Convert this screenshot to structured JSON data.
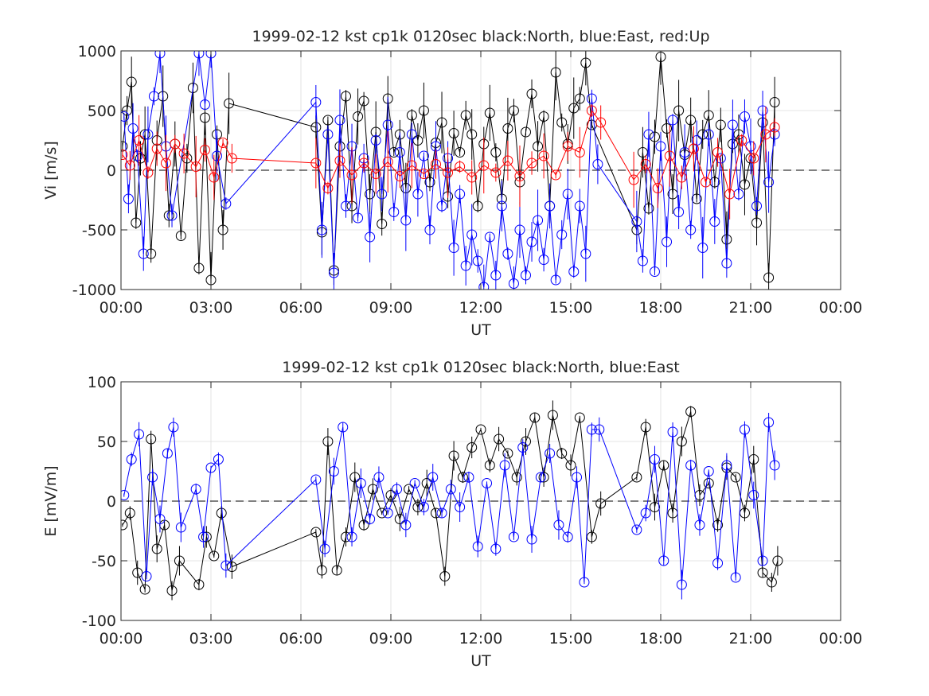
{
  "chart_data": [
    {
      "type": "line",
      "title": "1999-02-12 kst cp1k 0120sec black:North, blue:East, red:Up",
      "xlabel": "UT",
      "ylabel": "Vi [m/s]",
      "xlim": [
        0,
        24
      ],
      "ylim": [
        -1000,
        1000
      ],
      "yticks": [
        -1000,
        -500,
        0,
        500,
        1000
      ],
      "xtick_labels": [
        "00:00",
        "03:00",
        "06:00",
        "09:00",
        "12:00",
        "15:00",
        "18:00",
        "21:00",
        "00:00"
      ],
      "grid": true,
      "zero_line": "dashed",
      "series": [
        {
          "name": "North",
          "color": "#000000",
          "x": [
            0.05,
            0.2,
            0.35,
            0.5,
            0.65,
            0.8,
            1.0,
            1.2,
            1.4,
            1.6,
            1.8,
            2.0,
            2.2,
            2.4,
            2.6,
            2.8,
            3.0,
            3.2,
            3.4,
            3.6,
            6.5,
            6.7,
            6.9,
            7.1,
            7.3,
            7.5,
            7.7,
            7.9,
            8.1,
            8.3,
            8.5,
            8.7,
            8.9,
            9.1,
            9.3,
            9.5,
            9.7,
            9.9,
            10.1,
            10.3,
            10.5,
            10.7,
            10.9,
            11.1,
            11.3,
            11.5,
            11.7,
            11.9,
            12.1,
            12.3,
            12.5,
            12.7,
            12.9,
            13.1,
            13.3,
            13.5,
            13.7,
            13.9,
            14.1,
            14.3,
            14.5,
            14.7,
            14.9,
            15.1,
            15.3,
            15.5,
            15.7,
            17.2,
            17.4,
            17.6,
            17.8,
            18.0,
            18.2,
            18.4,
            18.6,
            18.8,
            19.0,
            19.2,
            19.4,
            19.6,
            19.8,
            20.0,
            20.2,
            20.4,
            20.6,
            20.8,
            21.0,
            21.2,
            21.4,
            21.6,
            21.8
          ],
          "y": [
            200,
            500,
            740,
            -440,
            100,
            300,
            -700,
            250,
            620,
            -380,
            220,
            -550,
            100,
            690,
            -820,
            440,
            -920,
            300,
            -500,
            560,
            360,
            -520,
            420,
            -840,
            200,
            620,
            -300,
            450,
            580,
            -200,
            320,
            -450,
            600,
            150,
            300,
            -150,
            460,
            250,
            500,
            -100,
            230,
            400,
            -220,
            310,
            150,
            460,
            300,
            -300,
            220,
            480,
            150,
            -240,
            350,
            500,
            -100,
            320,
            640,
            200,
            450,
            -300,
            820,
            400,
            220,
            520,
            600,
            900,
            380,
            -500,
            150,
            -320,
            280,
            950,
            350,
            -200,
            500,
            130,
            420,
            -240,
            300,
            460,
            -100,
            380,
            -580,
            220,
            300,
            -120,
            100,
            -440,
            400,
            -900,
            570
          ]
        },
        {
          "name": "East",
          "color": "#0000ff",
          "x": [
            0.1,
            0.25,
            0.4,
            0.55,
            0.75,
            0.9,
            1.1,
            1.3,
            1.5,
            1.7,
            2.6,
            2.8,
            3.0,
            3.2,
            3.5,
            6.5,
            6.7,
            6.9,
            7.1,
            7.3,
            7.5,
            7.7,
            7.9,
            8.1,
            8.3,
            8.5,
            8.7,
            8.9,
            9.1,
            9.3,
            9.5,
            9.7,
            9.9,
            10.1,
            10.3,
            10.5,
            10.7,
            10.9,
            11.1,
            11.3,
            11.5,
            11.7,
            11.9,
            12.1,
            12.3,
            12.5,
            12.7,
            12.9,
            13.1,
            13.3,
            13.5,
            13.7,
            13.9,
            14.1,
            14.3,
            14.5,
            14.7,
            14.9,
            15.1,
            15.3,
            15.5,
            15.7,
            15.9,
            17.2,
            17.4,
            17.6,
            17.8,
            18.0,
            18.2,
            18.4,
            18.6,
            18.8,
            19.0,
            19.2,
            19.4,
            19.6,
            19.8,
            20.0,
            20.2,
            20.4,
            20.6,
            20.8,
            21.0,
            21.2,
            21.4,
            21.6,
            21.8
          ],
          "y": [
            450,
            -240,
            350,
            120,
            -700,
            300,
            620,
            980,
            200,
            -380,
            980,
            550,
            980,
            120,
            -280,
            570,
            -500,
            300,
            -860,
            420,
            -300,
            200,
            -400,
            100,
            -560,
            250,
            -200,
            380,
            -350,
            150,
            -420,
            300,
            -200,
            120,
            -500,
            200,
            -300,
            100,
            -650,
            -200,
            -800,
            -540,
            -760,
            -980,
            -560,
            -880,
            -300,
            -700,
            -950,
            -500,
            -880,
            -600,
            -420,
            -750,
            -300,
            -920,
            -540,
            -200,
            -850,
            -300,
            -700,
            600,
            50,
            -430,
            -760,
            300,
            -850,
            200,
            -600,
            420,
            -350,
            150,
            -500,
            250,
            -650,
            300,
            -430,
            100,
            -780,
            380,
            -200,
            450,
            200,
            -300,
            500,
            -100,
            300
          ]
        },
        {
          "name": "Up",
          "color": "#ff0000",
          "x": [
            0.05,
            0.3,
            0.6,
            0.9,
            1.2,
            1.5,
            1.8,
            2.1,
            2.5,
            2.8,
            3.1,
            3.4,
            3.7,
            6.5,
            6.9,
            7.3,
            7.7,
            8.1,
            8.5,
            8.9,
            9.3,
            9.7,
            10.1,
            10.5,
            10.9,
            11.3,
            11.7,
            12.1,
            12.5,
            12.9,
            13.3,
            13.7,
            14.1,
            14.5,
            14.9,
            15.3,
            15.7,
            16.0,
            17.1,
            17.5,
            17.9,
            18.3,
            18.7,
            19.1,
            19.5,
            19.9,
            20.3,
            20.7,
            21.1,
            21.5,
            21.8
          ],
          "y": [
            130,
            40,
            250,
            -20,
            180,
            60,
            220,
            140,
            30,
            170,
            -60,
            230,
            100,
            60,
            -150,
            80,
            -40,
            60,
            -30,
            70,
            -50,
            40,
            -30,
            50,
            -20,
            30,
            -60,
            40,
            -20,
            80,
            -50,
            60,
            120,
            -40,
            200,
            150,
            500,
            400,
            -80,
            50,
            -150,
            120,
            -60,
            180,
            -100,
            150,
            -200,
            250,
            100,
            300,
            360
          ]
        }
      ]
    },
    {
      "type": "line",
      "title": "1999-02-12 kst cp1k 0120sec black:North, blue:East",
      "xlabel": "UT",
      "ylabel": "E [mV/m]",
      "xlim": [
        0,
        24
      ],
      "ylim": [
        -100,
        100
      ],
      "yticks": [
        -100,
        -50,
        0,
        50,
        100
      ],
      "xtick_labels": [
        "00:00",
        "03:00",
        "06:00",
        "09:00",
        "12:00",
        "15:00",
        "18:00",
        "21:00",
        "00:00"
      ],
      "grid": true,
      "zero_line": "dashed",
      "series": [
        {
          "name": "North",
          "color": "#000000",
          "x": [
            0.05,
            0.3,
            0.55,
            0.8,
            1.0,
            1.2,
            1.45,
            1.7,
            1.95,
            2.6,
            2.85,
            3.1,
            3.35,
            3.7,
            6.5,
            6.7,
            6.9,
            7.2,
            7.5,
            7.8,
            8.1,
            8.4,
            8.7,
            9.0,
            9.3,
            9.6,
            9.9,
            10.2,
            10.5,
            10.8,
            11.1,
            11.4,
            11.7,
            12.0,
            12.3,
            12.6,
            12.9,
            13.2,
            13.5,
            13.8,
            14.1,
            14.4,
            14.7,
            15.0,
            15.3,
            15.7,
            16.0,
            17.2,
            17.5,
            17.8,
            18.1,
            18.4,
            18.7,
            19.0,
            19.3,
            19.6,
            19.9,
            20.2,
            20.5,
            20.8,
            21.1,
            21.4,
            21.7,
            21.9
          ],
          "y": [
            -20,
            -10,
            -60,
            -74,
            52,
            -40,
            -20,
            -75,
            -50,
            -70,
            -30,
            -46,
            -10,
            -55,
            -26,
            -58,
            50,
            -58,
            -30,
            20,
            -20,
            10,
            -10,
            5,
            -15,
            10,
            -5,
            15,
            -10,
            -63,
            38,
            20,
            45,
            60,
            30,
            52,
            40,
            20,
            50,
            70,
            20,
            72,
            40,
            30,
            70,
            -30,
            -2,
            20,
            62,
            -5,
            30,
            -10,
            50,
            75,
            5,
            15,
            -20,
            28,
            20,
            -10,
            35,
            -60,
            -68,
            -50
          ]
        },
        {
          "name": "East",
          "color": "#0000ff",
          "x": [
            0.1,
            0.35,
            0.6,
            0.85,
            1.05,
            1.3,
            1.55,
            1.75,
            2.0,
            2.5,
            2.75,
            3.0,
            3.25,
            3.5,
            6.5,
            6.8,
            7.1,
            7.4,
            7.7,
            8.0,
            8.3,
            8.6,
            8.9,
            9.2,
            9.5,
            9.8,
            10.1,
            10.4,
            10.7,
            11.0,
            11.3,
            11.6,
            11.9,
            12.2,
            12.5,
            12.8,
            13.1,
            13.4,
            13.7,
            14.0,
            14.3,
            14.6,
            14.9,
            15.2,
            15.45,
            15.7,
            15.95,
            17.2,
            17.5,
            17.8,
            18.1,
            18.4,
            18.7,
            19.0,
            19.3,
            19.6,
            19.9,
            20.2,
            20.5,
            20.8,
            21.1,
            21.4,
            21.6,
            21.8
          ],
          "y": [
            5,
            35,
            56,
            -63,
            20,
            -15,
            40,
            62,
            -22,
            10,
            -30,
            28,
            35,
            -54,
            18,
            -40,
            25,
            62,
            -30,
            15,
            -15,
            20,
            -10,
            10,
            -20,
            15,
            -5,
            20,
            -10,
            10,
            -5,
            20,
            -38,
            15,
            -40,
            30,
            -30,
            45,
            -32,
            20,
            40,
            -20,
            -30,
            20,
            -68,
            60,
            60,
            -24,
            -10,
            35,
            -50,
            58,
            -70,
            30,
            -20,
            25,
            -52,
            30,
            -64,
            60,
            5,
            -50,
            66,
            30
          ]
        }
      ]
    }
  ]
}
